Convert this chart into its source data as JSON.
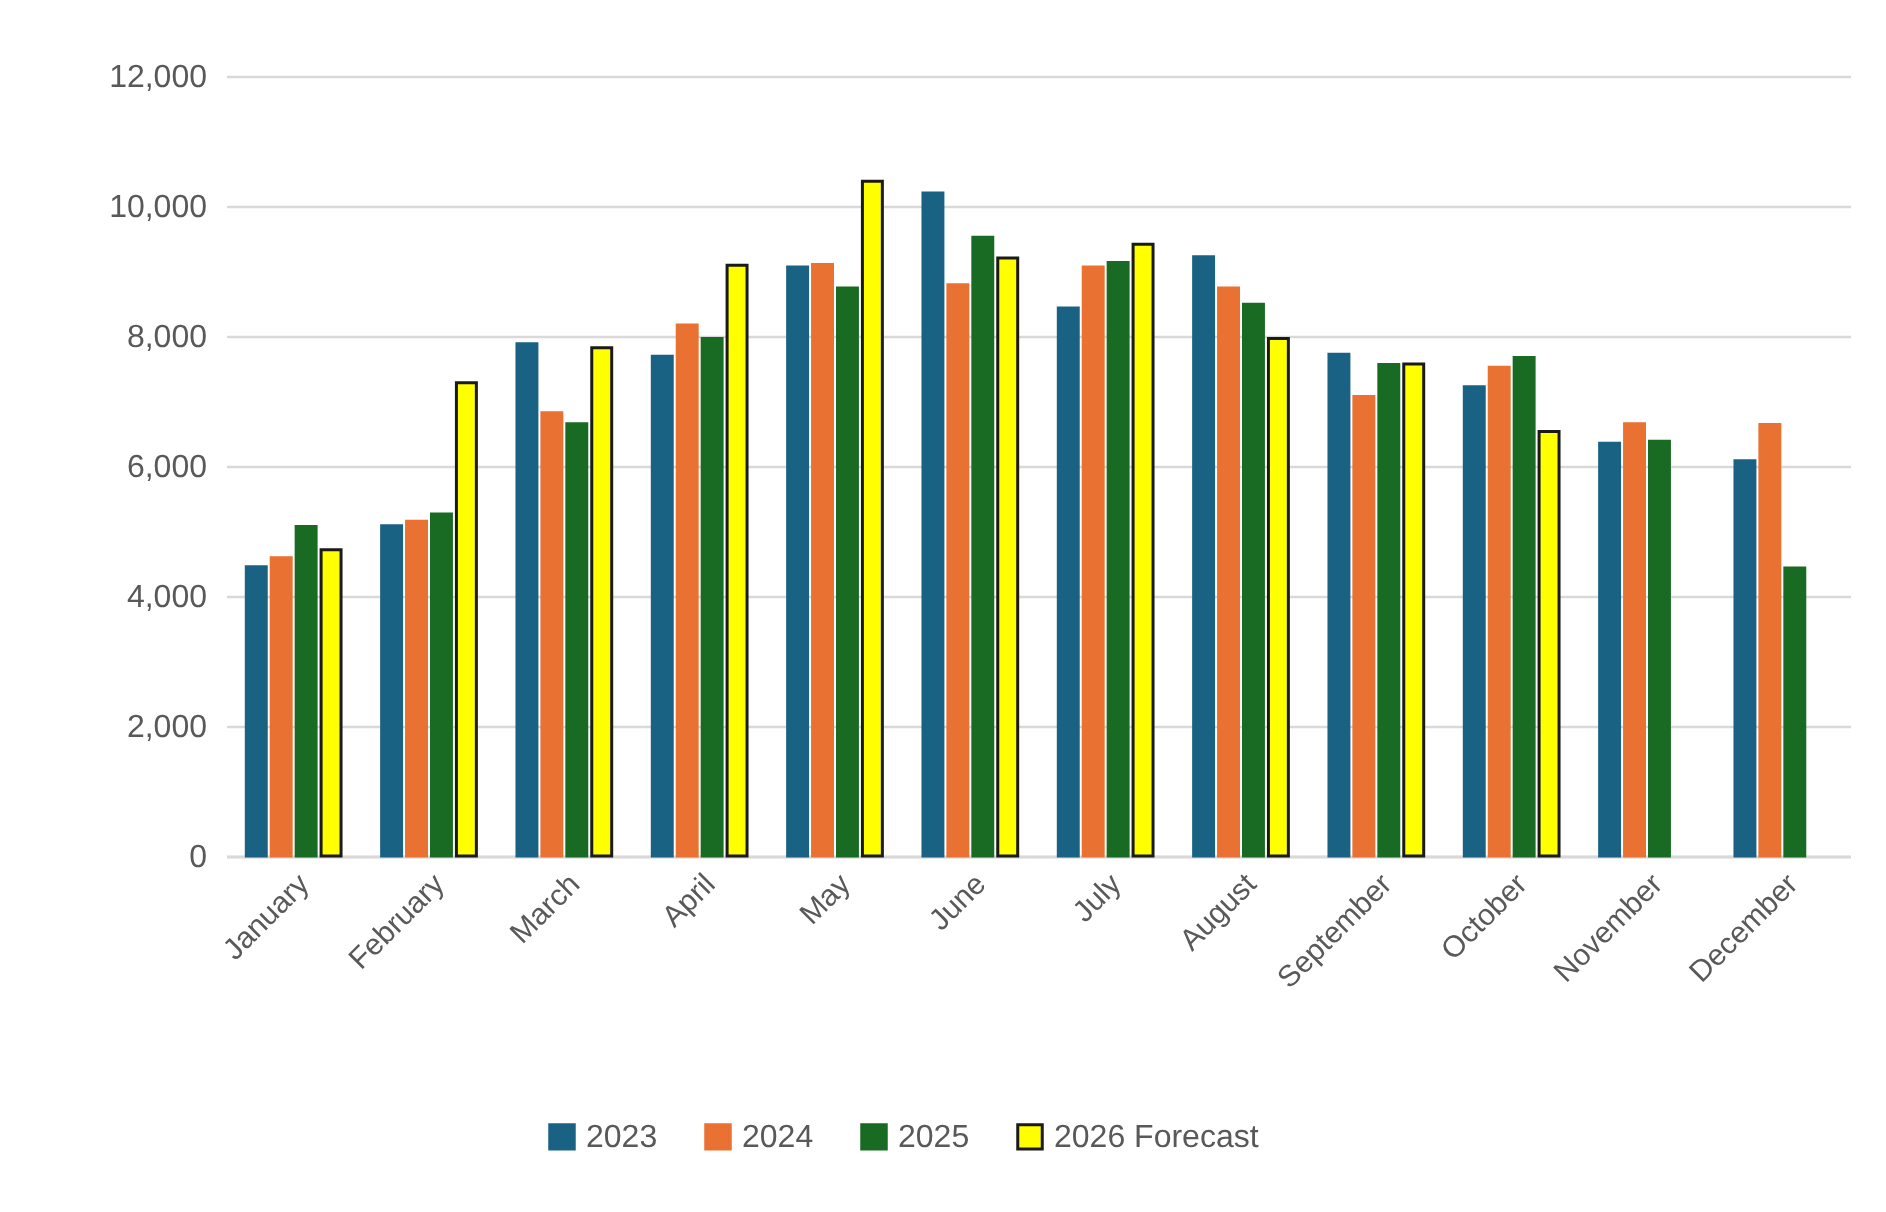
{
  "chart_data": {
    "type": "bar",
    "categories": [
      "January",
      "February",
      "March",
      "April",
      "May",
      "June",
      "July",
      "August",
      "September",
      "October",
      "November",
      "December"
    ],
    "series": [
      {
        "name": "2023",
        "color": "#1a6283",
        "values": [
          4450,
          5080,
          7880,
          7690,
          9060,
          10200,
          8430,
          9220,
          7720,
          7220,
          6350,
          6080
        ]
      },
      {
        "name": "2024",
        "color": "#e97132",
        "values": [
          4590,
          5150,
          6820,
          8170,
          9100,
          8790,
          9060,
          8740,
          7070,
          7520,
          6650,
          6640
        ]
      },
      {
        "name": "2025",
        "color": "#196b24",
        "values": [
          5070,
          5260,
          6650,
          7960,
          8740,
          9520,
          9130,
          8490,
          7560,
          7670,
          6380,
          4430
        ]
      },
      {
        "name": "2026 Forecast",
        "color": "#ffff00",
        "values": [
          4710,
          7280,
          7820,
          9090,
          10380,
          9200,
          9410,
          7960,
          7570,
          6530,
          null,
          null
        ]
      }
    ],
    "ylim": [
      0,
      12000
    ],
    "yticks": [
      0,
      {
        "value": 2000,
        "label": "2,000"
      },
      {
        "value": 4000,
        "label": "4,000"
      },
      {
        "value": 6000,
        "label": "6,000"
      },
      {
        "value": 8000,
        "label": "8,000"
      },
      {
        "value": 10000,
        "label": "10,000"
      },
      {
        "value": 12000,
        "label": "12,000"
      }
    ],
    "grid": "y",
    "legend": "bottom"
  }
}
